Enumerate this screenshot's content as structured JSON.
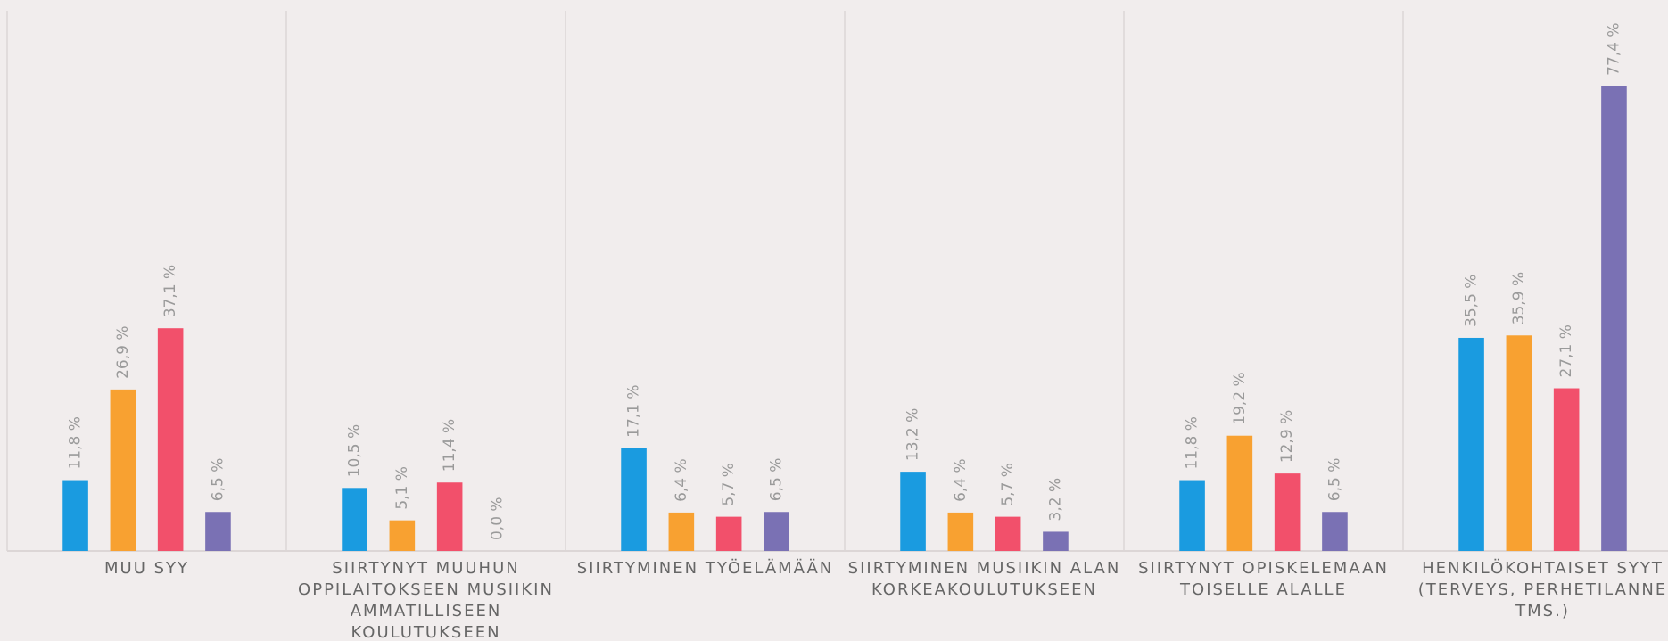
{
  "chart_data": {
    "type": "bar",
    "categories": [
      "MUU SYY",
      "SIIRTYNYT MUUHUN OPPILAITOKSEEN MUSIIKIN AMMATILLISEEN KOULUTUKSEEN",
      "SIIRTYMINEN TYÖELÄMÄÄN",
      "SIIRTYMINEN MUSIIKIN ALAN KORKEAKOULUTUKSEEN",
      "SIIRTYNYT OPISKELEMAAN TOISELLE ALALLE",
      "HENKILÖKOHTAISET SYYT (TERVEYS, PERHETILANNE TMS.)"
    ],
    "series": [
      {
        "color": "#1a9be0",
        "values": [
          11.8,
          10.5,
          17.1,
          13.2,
          11.8,
          35.5
        ],
        "value_labels": [
          "11,8 %",
          "10,5 %",
          "17,1 %",
          "13,2 %",
          "11,8 %",
          "35,5 %"
        ]
      },
      {
        "color": "#f8a131",
        "values": [
          26.9,
          5.1,
          6.4,
          6.4,
          19.2,
          35.9
        ],
        "value_labels": [
          "26,9 %",
          "5,1 %",
          "6,4 %",
          "6,4 %",
          "19,2 %",
          "35,9 %"
        ]
      },
      {
        "color": "#f2506b",
        "values": [
          37.1,
          11.4,
          5.7,
          5.7,
          12.9,
          27.1
        ],
        "value_labels": [
          "37,1 %",
          "11,4 %",
          "5,7 %",
          "5,7 %",
          "12,9 %",
          "27,1 %"
        ]
      },
      {
        "color": "#7a71b4",
        "values": [
          6.5,
          0.0,
          6.5,
          3.2,
          6.5,
          77.4
        ],
        "value_labels": [
          "6,5 %",
          "0,0 %",
          "6,5 %",
          "3,2 %",
          "6,5 %",
          "77,4 %"
        ]
      }
    ],
    "ylim": [
      0,
      90
    ]
  }
}
